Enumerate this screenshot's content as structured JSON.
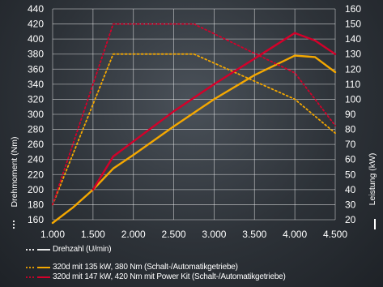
{
  "chart_data": {
    "type": "line",
    "x_axis": {
      "label": "Drehzahl (U/min)",
      "range": [
        1000,
        4500
      ],
      "ticks": [
        1000,
        1500,
        2000,
        2500,
        3000,
        3500,
        4000,
        4500
      ],
      "tick_labels": [
        "1.000",
        "1.500",
        "2.000",
        "2.500",
        "3.000",
        "3.500",
        "4.000",
        "4.500"
      ]
    },
    "y_axis_left": {
      "label": "Drehmoment (Nm)",
      "range": [
        160,
        440
      ],
      "ticks": [
        160,
        180,
        200,
        220,
        240,
        260,
        280,
        300,
        320,
        340,
        360,
        380,
        400,
        420,
        440
      ]
    },
    "y_axis_right": {
      "label": "Leistung (kW)",
      "range": [
        20,
        160
      ],
      "ticks": [
        20,
        30,
        40,
        50,
        60,
        70,
        80,
        90,
        100,
        110,
        120,
        130,
        140,
        150,
        160
      ]
    },
    "grid": true,
    "series": [
      {
        "name": "320d mit 135 kW, 380 Nm (Schalt-/Automatikgetriebe)",
        "color": "#f5a800",
        "style": "dotted",
        "quantity": "torque",
        "axis": "left",
        "x": [
          1000,
          1750,
          2750,
          4000,
          4500
        ],
        "y": [
          180,
          380,
          380,
          320,
          275
        ]
      },
      {
        "name": "320d mit 135 kW, 380 Nm (Schalt-/Automatikgetriebe)",
        "color": "#f5a800",
        "style": "solid",
        "quantity": "power",
        "axis": "right",
        "x": [
          1000,
          1250,
          1500,
          1750,
          2000,
          2500,
          3000,
          3500,
          4000,
          4250,
          4500
        ],
        "y": [
          15,
          28,
          40,
          54,
          63,
          82,
          100,
          116,
          129,
          128,
          118
        ]
      },
      {
        "name": "320d mit 147 kW, 420 Nm mit Power Kit (Schalt-/Automatikgetriebe)",
        "color": "#d4002a",
        "style": "dotted",
        "quantity": "torque",
        "axis": "left",
        "x": [
          1000,
          1750,
          2750,
          4000,
          4500
        ],
        "y": [
          180,
          420,
          420,
          355,
          285
        ]
      },
      {
        "name": "320d mit 147 kW, 420 Nm mit Power Kit (Schalt-/Automatikgetriebe)",
        "color": "#d4002a",
        "style": "solid",
        "quantity": "power",
        "axis": "right",
        "x": [
          1500,
          1750,
          2000,
          2500,
          3000,
          3500,
          4000,
          4250,
          4500
        ],
        "y": [
          40,
          62,
          72,
          92,
          110,
          127,
          144,
          139,
          130
        ]
      }
    ]
  }
}
